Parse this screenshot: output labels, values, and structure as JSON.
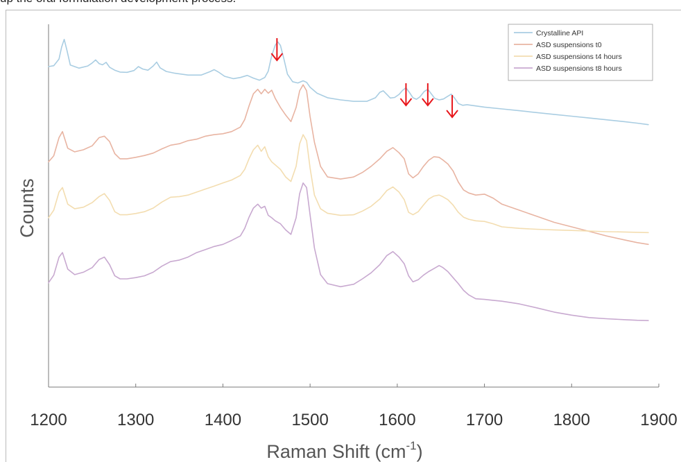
{
  "caption": "up the oral formulation development process.",
  "chart_data": {
    "type": "line",
    "title": "",
    "xlabel": "Raman Shift (cm",
    "xlabel_sup": "-1",
    "xlabel_close": ")",
    "ylabel": "Counts",
    "xlim": [
      1200,
      1900
    ],
    "ylim": [
      0,
      12
    ],
    "y_ticks_shown": false,
    "grid": false,
    "legend_position": "top-right",
    "x_ticks": [
      1200,
      1300,
      1400,
      1500,
      1600,
      1700,
      1800,
      1900
    ],
    "x_tick_labels": [
      "1200",
      "1300",
      "1400",
      "1500",
      "1600",
      "1700",
      "1800",
      "1900"
    ],
    "annotations": [
      {
        "type": "arrow",
        "x": 1462,
        "color": "#e8161b"
      },
      {
        "type": "arrow",
        "x": 1610,
        "color": "#e8161b"
      },
      {
        "type": "arrow",
        "x": 1635,
        "color": "#e8161b"
      },
      {
        "type": "arrow",
        "x": 1663,
        "color": "#e8161b"
      }
    ],
    "series": [
      {
        "name": "Crystalline API",
        "color": "#a9cde2",
        "x": [
          1200,
          1206,
          1212,
          1215,
          1218,
          1221,
          1225,
          1235,
          1245,
          1250,
          1254,
          1258,
          1262,
          1266,
          1270,
          1276,
          1282,
          1290,
          1298,
          1303,
          1308,
          1314,
          1320,
          1324,
          1328,
          1335,
          1345,
          1360,
          1375,
          1385,
          1390,
          1395,
          1402,
          1412,
          1420,
          1428,
          1435,
          1442,
          1448,
          1452,
          1456,
          1460,
          1463,
          1466,
          1470,
          1474,
          1480,
          1486,
          1492,
          1496,
          1500,
          1508,
          1520,
          1535,
          1550,
          1565,
          1575,
          1580,
          1584,
          1588,
          1592,
          1597,
          1602,
          1606,
          1610,
          1614,
          1618,
          1622,
          1626,
          1631,
          1635,
          1639,
          1643,
          1648,
          1653,
          1658,
          1662,
          1666,
          1670,
          1675,
          1680,
          1690,
          1700,
          1720,
          1740,
          1760,
          1780,
          1800,
          1820,
          1840,
          1860,
          1875,
          1888
        ],
        "y": [
          10.6,
          10.63,
          10.85,
          11.25,
          11.5,
          11.15,
          10.65,
          10.55,
          10.62,
          10.72,
          10.82,
          10.7,
          10.66,
          10.74,
          10.58,
          10.48,
          10.42,
          10.41,
          10.47,
          10.6,
          10.52,
          10.48,
          10.62,
          10.75,
          10.56,
          10.44,
          10.38,
          10.32,
          10.32,
          10.43,
          10.5,
          10.42,
          10.28,
          10.2,
          10.24,
          10.31,
          10.22,
          10.15,
          10.24,
          10.45,
          10.96,
          11.31,
          11.42,
          11.3,
          10.85,
          10.35,
          10.1,
          10.06,
          10.13,
          10.08,
          9.92,
          9.72,
          9.57,
          9.5,
          9.45,
          9.45,
          9.57,
          9.75,
          9.8,
          9.68,
          9.56,
          9.58,
          9.68,
          9.81,
          9.9,
          9.74,
          9.57,
          9.52,
          9.6,
          9.78,
          9.85,
          9.7,
          9.55,
          9.5,
          9.53,
          9.62,
          9.69,
          9.55,
          9.38,
          9.32,
          9.34,
          9.3,
          9.26,
          9.2,
          9.14,
          9.08,
          9.02,
          8.96,
          8.9,
          8.84,
          8.78,
          8.73,
          8.68
        ]
      },
      {
        "name": "ASD suspensions t0",
        "color": "#e8b4a2",
        "x": [
          1200,
          1206,
          1212,
          1216,
          1222,
          1230,
          1240,
          1250,
          1258,
          1264,
          1270,
          1276,
          1282,
          1290,
          1300,
          1310,
          1320,
          1330,
          1340,
          1350,
          1360,
          1370,
          1380,
          1390,
          1400,
          1410,
          1420,
          1425,
          1430,
          1435,
          1440,
          1444,
          1448,
          1452,
          1456,
          1460,
          1466,
          1472,
          1478,
          1484,
          1488,
          1492,
          1496,
          1500,
          1505,
          1512,
          1520,
          1535,
          1550,
          1560,
          1570,
          1580,
          1588,
          1595,
          1602,
          1608,
          1613,
          1618,
          1624,
          1630,
          1636,
          1642,
          1648,
          1652,
          1658,
          1664,
          1670,
          1676,
          1682,
          1690,
          1700,
          1710,
          1720,
          1740,
          1760,
          1780,
          1800,
          1820,
          1840,
          1860,
          1875,
          1888
        ],
        "y": [
          7.45,
          7.65,
          8.25,
          8.45,
          7.9,
          7.78,
          7.85,
          7.98,
          8.25,
          8.3,
          8.12,
          7.72,
          7.55,
          7.55,
          7.6,
          7.66,
          7.74,
          7.88,
          8.0,
          8.05,
          8.15,
          8.2,
          8.3,
          8.35,
          8.38,
          8.45,
          8.6,
          8.85,
          9.3,
          9.7,
          9.85,
          9.7,
          9.85,
          9.72,
          9.82,
          9.55,
          9.25,
          9.0,
          8.78,
          9.25,
          9.8,
          10.0,
          9.8,
          8.95,
          8.1,
          7.3,
          6.95,
          6.88,
          6.95,
          7.1,
          7.3,
          7.55,
          7.8,
          7.92,
          7.75,
          7.55,
          7.05,
          6.92,
          7.05,
          7.3,
          7.5,
          7.62,
          7.6,
          7.52,
          7.38,
          7.15,
          6.78,
          6.52,
          6.42,
          6.35,
          6.38,
          6.25,
          6.05,
          5.85,
          5.65,
          5.45,
          5.3,
          5.15,
          5.0,
          4.87,
          4.78,
          4.72
        ]
      },
      {
        "name": "ASD suspensions t4 hours",
        "color": "#f3ddb0",
        "x": [
          1200,
          1206,
          1212,
          1216,
          1222,
          1230,
          1240,
          1250,
          1258,
          1264,
          1270,
          1276,
          1282,
          1290,
          1300,
          1310,
          1320,
          1330,
          1340,
          1350,
          1360,
          1370,
          1380,
          1390,
          1400,
          1410,
          1420,
          1425,
          1430,
          1435,
          1440,
          1444,
          1448,
          1452,
          1456,
          1460,
          1466,
          1472,
          1478,
          1484,
          1488,
          1492,
          1496,
          1500,
          1505,
          1512,
          1520,
          1535,
          1550,
          1560,
          1570,
          1580,
          1588,
          1595,
          1602,
          1608,
          1613,
          1618,
          1624,
          1630,
          1636,
          1642,
          1648,
          1652,
          1658,
          1664,
          1670,
          1676,
          1682,
          1690,
          1700,
          1710,
          1720,
          1740,
          1760,
          1780,
          1800,
          1820,
          1840,
          1860,
          1875,
          1888
        ],
        "y": [
          5.6,
          5.85,
          6.45,
          6.6,
          6.05,
          5.9,
          5.95,
          6.1,
          6.3,
          6.4,
          6.18,
          5.8,
          5.7,
          5.7,
          5.74,
          5.8,
          5.92,
          6.12,
          6.28,
          6.3,
          6.35,
          6.45,
          6.55,
          6.65,
          6.75,
          6.85,
          7.0,
          7.2,
          7.55,
          7.85,
          8.0,
          7.8,
          7.95,
          7.62,
          7.45,
          7.35,
          7.2,
          6.95,
          6.8,
          7.3,
          8.05,
          8.35,
          8.15,
          7.25,
          6.35,
          5.9,
          5.75,
          5.68,
          5.7,
          5.82,
          5.98,
          6.22,
          6.5,
          6.62,
          6.45,
          6.2,
          5.78,
          5.7,
          5.8,
          6.02,
          6.22,
          6.32,
          6.35,
          6.3,
          6.2,
          6.02,
          5.78,
          5.62,
          5.55,
          5.5,
          5.48,
          5.4,
          5.3,
          5.25,
          5.22,
          5.2,
          5.18,
          5.16,
          5.14,
          5.13,
          5.12,
          5.11
        ]
      },
      {
        "name": "ASD suspensions t8 hours",
        "color": "#c8a9d0",
        "x": [
          1200,
          1206,
          1212,
          1216,
          1222,
          1230,
          1240,
          1250,
          1258,
          1264,
          1270,
          1276,
          1282,
          1290,
          1300,
          1310,
          1320,
          1330,
          1340,
          1350,
          1360,
          1370,
          1380,
          1390,
          1400,
          1410,
          1420,
          1425,
          1430,
          1435,
          1440,
          1444,
          1448,
          1452,
          1456,
          1460,
          1466,
          1472,
          1478,
          1484,
          1488,
          1492,
          1496,
          1500,
          1505,
          1512,
          1520,
          1535,
          1550,
          1560,
          1570,
          1580,
          1588,
          1595,
          1602,
          1608,
          1613,
          1618,
          1624,
          1630,
          1636,
          1642,
          1648,
          1652,
          1658,
          1664,
          1670,
          1676,
          1682,
          1690,
          1700,
          1710,
          1720,
          1740,
          1760,
          1780,
          1800,
          1820,
          1840,
          1860,
          1875,
          1888
        ],
        "y": [
          3.45,
          3.7,
          4.3,
          4.45,
          3.9,
          3.72,
          3.8,
          3.95,
          4.22,
          4.3,
          4.05,
          3.68,
          3.58,
          3.58,
          3.62,
          3.68,
          3.8,
          4.0,
          4.15,
          4.2,
          4.3,
          4.45,
          4.55,
          4.65,
          4.72,
          4.85,
          5.0,
          5.25,
          5.62,
          5.92,
          6.05,
          5.92,
          5.98,
          5.68,
          5.6,
          5.5,
          5.4,
          5.2,
          5.05,
          5.6,
          6.4,
          6.75,
          6.6,
          5.7,
          4.6,
          3.72,
          3.42,
          3.32,
          3.4,
          3.58,
          3.78,
          4.05,
          4.35,
          4.48,
          4.3,
          4.08,
          3.68,
          3.48,
          3.55,
          3.7,
          3.82,
          3.92,
          4.02,
          3.96,
          3.82,
          3.62,
          3.42,
          3.2,
          3.05,
          2.92,
          2.9,
          2.87,
          2.84,
          2.75,
          2.62,
          2.48,
          2.38,
          2.3,
          2.26,
          2.23,
          2.21,
          2.2
        ]
      }
    ]
  }
}
